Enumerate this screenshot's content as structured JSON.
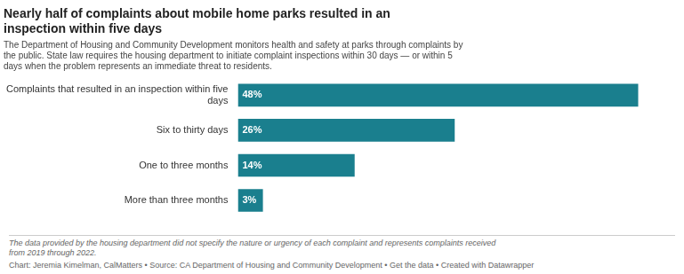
{
  "chart_data": {
    "type": "bar",
    "orientation": "horizontal",
    "title": "Nearly half of complaints about mobile home parks resulted in an\ninspection within five days",
    "subtitle": "The Department of Housing and Community Development monitors health and safety at parks through complaints by\nthe public. State law requires the housing department to initiate complaint inspections within 30 days — or within 5\ndays when the problem represents an immediate threat to residents.",
    "categories": [
      "Complaints that resulted in an inspection within five\ndays",
      "Six to thirty days",
      "One to three months",
      "More than three months"
    ],
    "values": [
      48,
      26,
      14,
      3
    ],
    "value_labels": [
      "48%",
      "26%",
      "14%",
      "3%"
    ],
    "data_labels": true,
    "color": "#1a7f8e",
    "xlim": [
      0,
      52
    ],
    "grid": false,
    "tick_labels": "y",
    "footnote": "The data provided by the housing department did not specify the nature or urgency of each complaint and represents complaints received\nfrom 2019 through 2022.",
    "source": "Chart: Jeremia Kimelman, CalMatters • Source: CA Department of Housing and Community Development • Get the data • Created with Datawrapper"
  }
}
